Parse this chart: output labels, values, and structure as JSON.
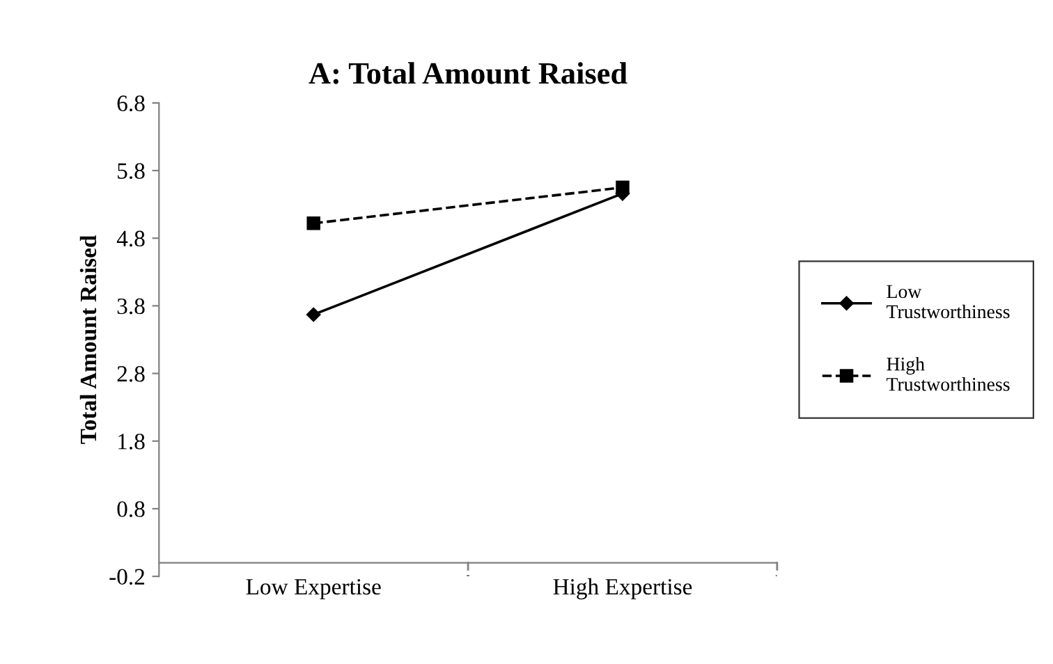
{
  "chart_data": {
    "type": "line",
    "title": "A: Total Amount Raised",
    "ylabel": "Total Amount Raised",
    "categories": [
      "Low Expertise",
      "High Expertise"
    ],
    "series": [
      {
        "name": "Low Trustworthiness",
        "color": "#000000",
        "values": [
          3.67,
          5.46
        ],
        "marker": "diamond",
        "line_style": "solid"
      },
      {
        "name": "High Trustworthiness",
        "color": "#000000",
        "values": [
          5.02,
          5.55
        ],
        "marker": "square",
        "line_style": "dashed"
      }
    ],
    "ylim": [
      -0.2,
      6.8
    ],
    "yticks": [
      -0.2,
      0.8,
      1.8,
      2.8,
      3.8,
      4.8,
      5.8,
      6.8
    ],
    "grid": false,
    "legend": "right"
  }
}
